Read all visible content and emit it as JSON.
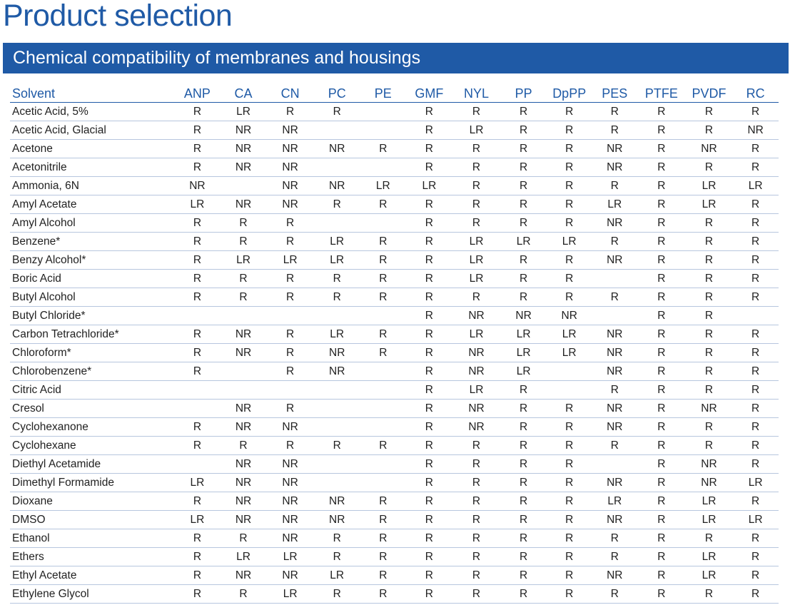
{
  "page": {
    "title": "Product selection",
    "section_title": "Chemical compatibility of membranes and housings"
  },
  "table": {
    "solvent_header": "Solvent",
    "columns": [
      "ANP",
      "CA",
      "CN",
      "PC",
      "PE",
      "GMF",
      "NYL",
      "PP",
      "DpPP",
      "PES",
      "PTFE",
      "PVDF",
      "RC"
    ],
    "rows": [
      {
        "solvent": "Acetic Acid, 5%",
        "values": [
          "R",
          "LR",
          "R",
          "R",
          "",
          "R",
          "R",
          "R",
          "R",
          "R",
          "R",
          "R",
          "R"
        ]
      },
      {
        "solvent": "Acetic Acid, Glacial",
        "values": [
          "R",
          "NR",
          "NR",
          "",
          "",
          "R",
          "LR",
          "R",
          "R",
          "R",
          "R",
          "R",
          "NR"
        ]
      },
      {
        "solvent": "Acetone",
        "values": [
          "R",
          "NR",
          "NR",
          "NR",
          "R",
          "R",
          "R",
          "R",
          "R",
          "NR",
          "R",
          "NR",
          "R"
        ]
      },
      {
        "solvent": "Acetonitrile",
        "values": [
          "R",
          "NR",
          "NR",
          "",
          "",
          "R",
          "R",
          "R",
          "R",
          "NR",
          "R",
          "R",
          "R"
        ]
      },
      {
        "solvent": "Ammonia, 6N",
        "values": [
          "NR",
          "",
          "NR",
          "NR",
          "LR",
          "LR",
          "R",
          "R",
          "R",
          "R",
          "R",
          "LR",
          "LR"
        ]
      },
      {
        "solvent": "Amyl Acetate",
        "values": [
          "LR",
          "NR",
          "NR",
          "R",
          "R",
          "R",
          "R",
          "R",
          "R",
          "LR",
          "R",
          "LR",
          "R"
        ]
      },
      {
        "solvent": "Amyl Alcohol",
        "values": [
          "R",
          "R",
          "R",
          "",
          "",
          "R",
          "R",
          "R",
          "R",
          "NR",
          "R",
          "R",
          "R"
        ]
      },
      {
        "solvent": "Benzene*",
        "values": [
          "R",
          "R",
          "R",
          "LR",
          "R",
          "R",
          "LR",
          "LR",
          "LR",
          "R",
          "R",
          "R",
          "R"
        ]
      },
      {
        "solvent": "Benzy Alcohol*",
        "values": [
          "R",
          "LR",
          "LR",
          "LR",
          "R",
          "R",
          "LR",
          "R",
          "R",
          "NR",
          "R",
          "R",
          "R"
        ]
      },
      {
        "solvent": "Boric Acid",
        "values": [
          "R",
          "R",
          "R",
          "R",
          "R",
          "R",
          "LR",
          "R",
          "R",
          "",
          "R",
          "R",
          "R"
        ]
      },
      {
        "solvent": "Butyl Alcohol",
        "values": [
          "R",
          "R",
          "R",
          "R",
          "R",
          "R",
          "R",
          "R",
          "R",
          "R",
          "R",
          "R",
          "R"
        ]
      },
      {
        "solvent": "Butyl Chloride*",
        "values": [
          "",
          "",
          "",
          "",
          "",
          "R",
          "NR",
          "NR",
          "NR",
          "",
          "R",
          "R",
          ""
        ]
      },
      {
        "solvent": "Carbon Tetrachloride*",
        "values": [
          "R",
          "NR",
          "R",
          "LR",
          "R",
          "R",
          "LR",
          "LR",
          "LR",
          "NR",
          "R",
          "R",
          "R"
        ]
      },
      {
        "solvent": "Chloroform*",
        "values": [
          "R",
          "NR",
          "R",
          "NR",
          "R",
          "R",
          "NR",
          "LR",
          "LR",
          "NR",
          "R",
          "R",
          "R"
        ]
      },
      {
        "solvent": "Chlorobenzene*",
        "values": [
          "R",
          "",
          "R",
          "NR",
          "",
          "R",
          "NR",
          "LR",
          "",
          "NR",
          "R",
          "R",
          "R"
        ]
      },
      {
        "solvent": "Citric Acid",
        "values": [
          "",
          "",
          "",
          "",
          "",
          "R",
          "LR",
          "R",
          "",
          "R",
          "R",
          "R",
          "R"
        ]
      },
      {
        "solvent": "Cresol",
        "values": [
          "",
          "NR",
          "R",
          "",
          "",
          "R",
          "NR",
          "R",
          "R",
          "NR",
          "R",
          "NR",
          "R"
        ]
      },
      {
        "solvent": "Cyclohexanone",
        "values": [
          "R",
          "NR",
          "NR",
          "",
          "",
          "R",
          "NR",
          "R",
          "R",
          "NR",
          "R",
          "R",
          "R"
        ]
      },
      {
        "solvent": "Cyclohexane",
        "values": [
          "R",
          "R",
          "R",
          "R",
          "R",
          "R",
          "R",
          "R",
          "R",
          "R",
          "R",
          "R",
          "R"
        ]
      },
      {
        "solvent": "Diethyl Acetamide",
        "values": [
          "",
          "NR",
          "NR",
          "",
          "",
          "R",
          "R",
          "R",
          "R",
          "",
          "R",
          "NR",
          "R"
        ]
      },
      {
        "solvent": "Dimethyl Formamide",
        "values": [
          "LR",
          "NR",
          "NR",
          "",
          "",
          "R",
          "R",
          "R",
          "R",
          "NR",
          "R",
          "NR",
          "LR"
        ]
      },
      {
        "solvent": "Dioxane",
        "values": [
          "R",
          "NR",
          "NR",
          "NR",
          "R",
          "R",
          "R",
          "R",
          "R",
          "LR",
          "R",
          "LR",
          "R"
        ]
      },
      {
        "solvent": "DMSO",
        "values": [
          "LR",
          "NR",
          "NR",
          "NR",
          "R",
          "R",
          "R",
          "R",
          "R",
          "NR",
          "R",
          "LR",
          "LR"
        ]
      },
      {
        "solvent": "Ethanol",
        "values": [
          "R",
          "R",
          "NR",
          "R",
          "R",
          "R",
          "R",
          "R",
          "R",
          "R",
          "R",
          "R",
          "R"
        ]
      },
      {
        "solvent": "Ethers",
        "values": [
          "R",
          "LR",
          "LR",
          "R",
          "R",
          "R",
          "R",
          "R",
          "R",
          "R",
          "R",
          "LR",
          "R"
        ]
      },
      {
        "solvent": "Ethyl Acetate",
        "values": [
          "R",
          "NR",
          "NR",
          "LR",
          "R",
          "R",
          "R",
          "R",
          "R",
          "NR",
          "R",
          "LR",
          "R"
        ]
      },
      {
        "solvent": "Ethylene Glycol",
        "values": [
          "R",
          "R",
          "LR",
          "R",
          "R",
          "R",
          "R",
          "R",
          "R",
          "R",
          "R",
          "R",
          "R"
        ]
      }
    ]
  },
  "colors": {
    "brand_blue": "#1f5aa6",
    "row_divider": "#b7c6de"
  }
}
